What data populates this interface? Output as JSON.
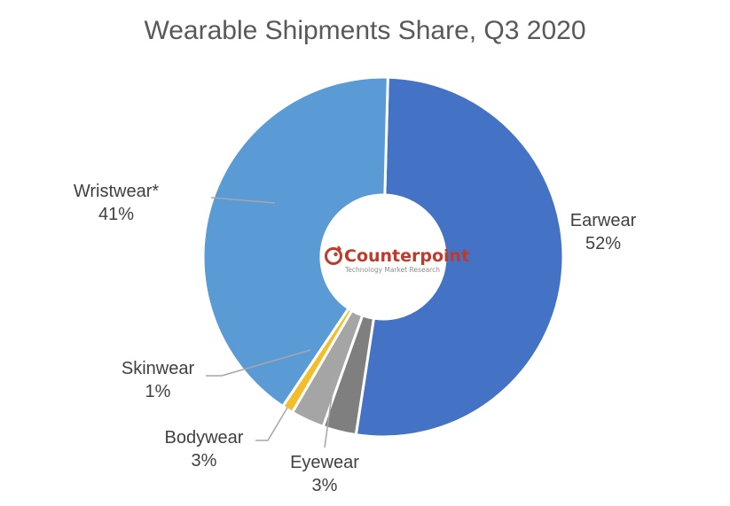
{
  "chart_data": {
    "type": "pie",
    "variant": "donut",
    "title": "Wearable Shipments Share, Q3 2020",
    "categories": [
      "Earwear",
      "Eyewear",
      "Bodywear",
      "Skinwear",
      "Wristwear*"
    ],
    "values": [
      52,
      3,
      3,
      1,
      41
    ],
    "labels": [
      "52%",
      "3%",
      "3%",
      "1%",
      "41%"
    ],
    "colors": [
      "#4472C4",
      "#7F7F7F",
      "#A5A5A5",
      "#F2BE2C",
      "#5B9BD5"
    ],
    "legend": "none (data labels with leader lines)"
  },
  "center_logo": {
    "brand": "Counterpoint",
    "tagline": "Technology Market Research",
    "color": "#C0392B"
  },
  "labels": {
    "earwear": {
      "name": "Earwear",
      "pct": "52%"
    },
    "wristwear": {
      "name": "Wristwear*",
      "pct": "41%"
    },
    "skinwear": {
      "name": "Skinwear",
      "pct": "1%"
    },
    "bodywear": {
      "name": "Bodywear",
      "pct": "3%"
    },
    "eyewear": {
      "name": "Eyewear",
      "pct": "3%"
    }
  }
}
